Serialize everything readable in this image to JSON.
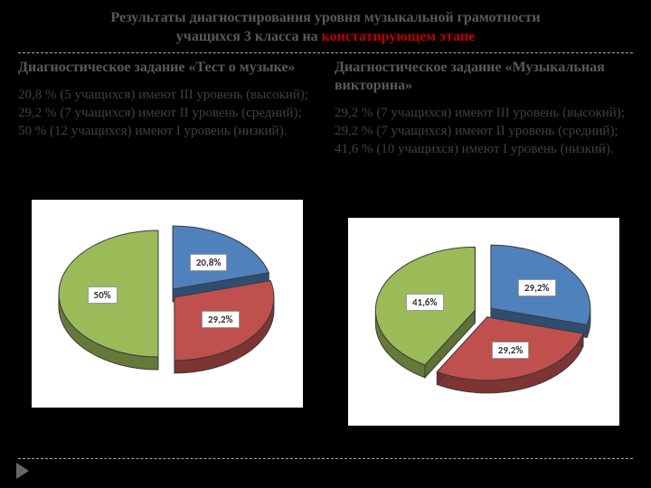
{
  "title": {
    "line1": "Результаты диагностирования уровня музыкальной грамотности",
    "line2_plain": "учащихся 3 класса на ",
    "line2_highlight": "констатирующем этапе",
    "color_plain": "#595959",
    "color_highlight": "#c00000",
    "fontsize": 16
  },
  "left": {
    "heading": "Диагностическое задание «Тест о музыке»",
    "body": "20,8 % (5 учащихся) имеют III уровень      (высокий);\n29,2 % (7 учащихся)  имеют II уровень (средний);\n50 % (12 учащихся) имеют I уровень (низкий).",
    "chart": {
      "type": "pie-3d-exploded",
      "slices": [
        {
          "label": "20,8%",
          "value": 20.8,
          "color": "#4f81bd"
        },
        {
          "label": "29,2%",
          "value": 29.2,
          "color": "#c0504d"
        },
        {
          "label": "50%",
          "value": 50.0,
          "color": "#9bbb59"
        }
      ],
      "background": "#ffffff",
      "stroke": "#3b3b3b",
      "depth": 14,
      "explode": 10,
      "label_border": "#999999",
      "label_fontsize": 11
    }
  },
  "right": {
    "heading": "Диагностическое задание «Музыкальная викторина»",
    "body": "29,2 % (7 учащихся) имеют III уровень      (высокий);\n29,2 % (7 учащихся)  имеют II уровень (средний);\n41,6 % (10 учащихся) имеют I уровень (низкий).",
    "chart": {
      "type": "pie-3d-exploded",
      "slices": [
        {
          "label": "29,2%",
          "value": 29.2,
          "color": "#4f81bd"
        },
        {
          "label": "29,2%",
          "value": 29.2,
          "color": "#c0504d"
        },
        {
          "label": "41,6%",
          "value": 41.6,
          "color": "#9bbb59"
        }
      ],
      "background": "#ffffff",
      "stroke": "#3b3b3b",
      "depth": 14,
      "explode": 10,
      "label_border": "#999999",
      "label_fontsize": 11
    }
  },
  "divider_color": "#aaaaaa",
  "corner_marker_color": "#666666"
}
